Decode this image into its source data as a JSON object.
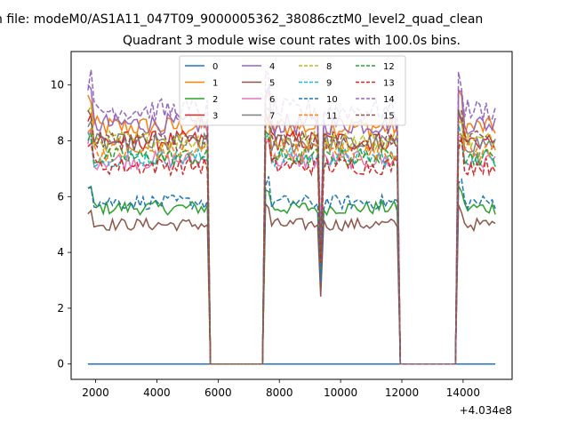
{
  "chart_data": {
    "type": "line",
    "suptitle": "n file: modeM0/AS1A11_047T09_9000005362_38086cztM0_level2_quad_clean",
    "title": "Quadrant 3 module wise count rates with 100.0s bins.",
    "xlabel": "",
    "ylabel": "",
    "x_offset_label": "+4.034e8",
    "xlim": [
      1200,
      15600
    ],
    "ylim": [
      -0.55,
      11.2
    ],
    "x_ticks": [
      2000,
      4000,
      6000,
      8000,
      10000,
      12000,
      14000
    ],
    "y_ticks": [
      0,
      2,
      4,
      6,
      8,
      10
    ],
    "grid": false,
    "legend_position": "top-center",
    "legend_columns": 4,
    "segments": [
      {
        "start": 1750,
        "end": 5650
      },
      {
        "start": 7550,
        "end": 11850
      },
      {
        "start": 13850,
        "end": 15050
      }
    ],
    "dips": [
      {
        "x": 9350,
        "factor": 0.5
      }
    ],
    "series": [
      {
        "name": "0",
        "color": "#1f77b4",
        "dash": "solid",
        "level": 0.0
      },
      {
        "name": "1",
        "color": "#ff7f0e",
        "dash": "solid",
        "level": 8.5
      },
      {
        "name": "2",
        "color": "#2ca02c",
        "dash": "solid",
        "level": 5.6
      },
      {
        "name": "3",
        "color": "#d62728",
        "dash": "solid",
        "level": 8.0
      },
      {
        "name": "4",
        "color": "#9467bd",
        "dash": "solid",
        "level": 8.6
      },
      {
        "name": "5",
        "color": "#8c564b",
        "dash": "solid",
        "level": 5.0
      },
      {
        "name": "6",
        "color": "#e377c2",
        "dash": "solid",
        "level": 7.3
      },
      {
        "name": "7",
        "color": "#7f7f7f",
        "dash": "solid",
        "level": 7.9
      },
      {
        "name": "8",
        "color": "#bcbd22",
        "dash": "dashed",
        "level": 8.0
      },
      {
        "name": "9",
        "color": "#17becf",
        "dash": "dashed",
        "level": 7.4
      },
      {
        "name": "10",
        "color": "#1f77b4",
        "dash": "dashed",
        "level": 5.8
      },
      {
        "name": "11",
        "color": "#ff7f0e",
        "dash": "dashed",
        "level": 7.6
      },
      {
        "name": "12",
        "color": "#2ca02c",
        "dash": "dashed",
        "level": 7.4
      },
      {
        "name": "13",
        "color": "#d62728",
        "dash": "dashed",
        "level": 7.1
      },
      {
        "name": "14",
        "color": "#9467bd",
        "dash": "dashed",
        "level": 9.1
      },
      {
        "name": "15",
        "color": "#8c564b",
        "dash": "dashed",
        "level": 8.0
      }
    ]
  }
}
